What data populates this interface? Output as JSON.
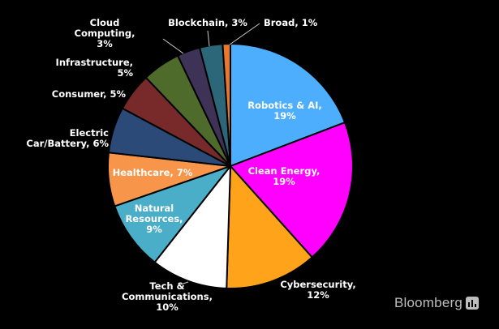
{
  "chart_data": {
    "type": "pie",
    "title": "",
    "slices": [
      {
        "label": "Robotics & AI, 19%",
        "name": "Robotics & AI",
        "value": 19,
        "color": "#4daefd"
      },
      {
        "label": "Clean Energy, 19%",
        "name": "Clean Energy",
        "value": 19,
        "color": "#ff00ff"
      },
      {
        "label": "Cybersecurity, 12%",
        "name": "Cybersecurity",
        "value": 12,
        "color": "#ffa31a"
      },
      {
        "label": "Tech & Communications, 10%",
        "name": "Tech & Communications",
        "value": 10,
        "color": "#ffffff"
      },
      {
        "label": "Natural Resources, 9%",
        "name": "Natural Resources",
        "value": 9,
        "color": "#4aaec8"
      },
      {
        "label": "Healthcare, 7%",
        "name": "Healthcare",
        "value": 7,
        "color": "#f7954a"
      },
      {
        "label": "Electric Car/Battery, 6%",
        "name": "Electric Car/Battery",
        "value": 6,
        "color": "#2c4a77"
      },
      {
        "label": "Consumer, 5%",
        "name": "Consumer",
        "value": 5,
        "color": "#782a2a"
      },
      {
        "label": "Infrastructure, 5%",
        "name": "Infrastructure",
        "value": 5,
        "color": "#4e6b2c"
      },
      {
        "label": "Cloud Computing, 3%",
        "name": "Cloud Computing",
        "value": 3,
        "color": "#3e3357"
      },
      {
        "label": "Blockchain, 3%",
        "name": "Blockchain",
        "value": 3,
        "color": "#2b6779"
      },
      {
        "label": "Broad, 1%",
        "name": "Broad",
        "value": 1,
        "color": "#e9782c"
      }
    ]
  },
  "brand": {
    "name": "Bloomberg",
    "icon": "bloomberg-chart-icon"
  }
}
